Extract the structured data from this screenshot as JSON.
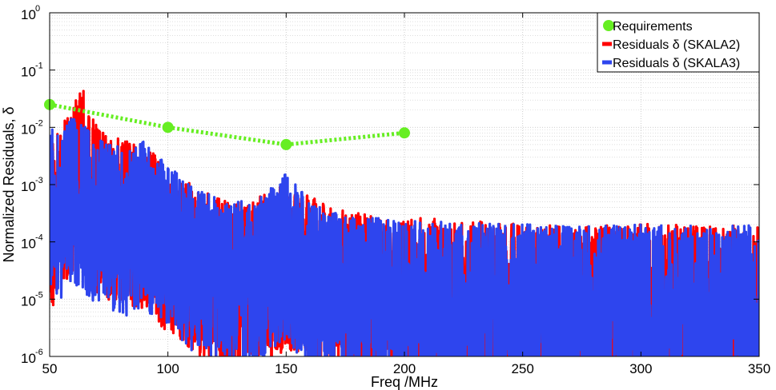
{
  "chart_data": {
    "type": "line",
    "xlabel": "Freq /MHz",
    "ylabel": "Normalized Residuals, δ",
    "xlim": [
      50,
      350
    ],
    "ylim": [
      1e-06,
      1
    ],
    "yscale": "log",
    "xticks": [
      50,
      100,
      150,
      200,
      250,
      300,
      350
    ],
    "yticks": [
      {
        "value": 1e-06,
        "base": "10",
        "exp": "-6"
      },
      {
        "value": 1e-05,
        "base": "10",
        "exp": "-5"
      },
      {
        "value": 0.0001,
        "base": "10",
        "exp": "-4"
      },
      {
        "value": 0.001,
        "base": "10",
        "exp": "-3"
      },
      {
        "value": 0.01,
        "base": "10",
        "exp": "-2"
      },
      {
        "value": 0.1,
        "base": "10",
        "exp": "-1"
      },
      {
        "value": 1,
        "base": "10",
        "exp": "0"
      }
    ],
    "grid": true,
    "legend_position": "top-right",
    "series": [
      {
        "name": "Requirements",
        "color": "#66ee22",
        "style": "dotted-with-markers",
        "x": [
          50,
          100,
          150,
          200
        ],
        "y": [
          0.025,
          0.01,
          0.005,
          0.008
        ]
      },
      {
        "name": "Residuals δ (SKALA2)",
        "color": "#ff0000",
        "style": "dense-noise",
        "x": [
          50,
          55,
          58,
          60,
          63,
          65,
          68,
          70,
          75,
          80,
          85,
          90,
          95,
          100,
          105,
          110,
          115,
          120,
          125,
          130,
          140,
          150,
          160,
          170,
          180,
          190,
          200,
          210,
          220,
          230,
          240,
          250,
          260,
          270,
          280,
          290,
          300,
          310,
          320,
          330,
          340,
          350
        ],
        "y": [
          0.004,
          0.008,
          0.015,
          0.02,
          0.04,
          0.03,
          0.012,
          0.008,
          0.006,
          0.005,
          0.004,
          0.004,
          0.0025,
          0.0015,
          0.001,
          0.0008,
          0.0006,
          0.0005,
          0.0004,
          0.0004,
          0.0005,
          0.0008,
          0.0005,
          0.0003,
          0.00025,
          0.0002,
          0.0002,
          0.0002,
          0.00018,
          0.00018,
          0.00017,
          0.00016,
          0.00016,
          0.00015,
          0.00015,
          0.00015,
          0.00016,
          0.00016,
          0.00015,
          0.00015,
          0.00015,
          0.00015
        ]
      },
      {
        "name": "Residuals δ (SKALA3)",
        "color": "#2e45ee",
        "style": "dense-noise",
        "x": [
          50,
          55,
          58,
          60,
          63,
          65,
          68,
          70,
          75,
          80,
          85,
          90,
          95,
          100,
          105,
          110,
          115,
          120,
          125,
          130,
          140,
          150,
          160,
          170,
          180,
          190,
          200,
          210,
          220,
          230,
          240,
          250,
          260,
          270,
          280,
          290,
          300,
          310,
          320,
          330,
          340,
          350
        ],
        "y": [
          0.008,
          0.006,
          0.01,
          0.012,
          0.009,
          0.008,
          0.006,
          0.005,
          0.004,
          0.0035,
          0.003,
          0.005,
          0.0025,
          0.002,
          0.0013,
          0.0008,
          0.0006,
          0.0005,
          0.0004,
          0.0004,
          0.0005,
          0.0012,
          0.0004,
          0.00025,
          0.0002,
          0.0002,
          0.00018,
          0.00018,
          0.00017,
          0.00017,
          0.00016,
          0.00016,
          0.00015,
          0.00015,
          0.00015,
          0.00015,
          0.00016,
          0.00015,
          0.00015,
          0.00014,
          0.00015,
          0.00015
        ]
      }
    ]
  }
}
